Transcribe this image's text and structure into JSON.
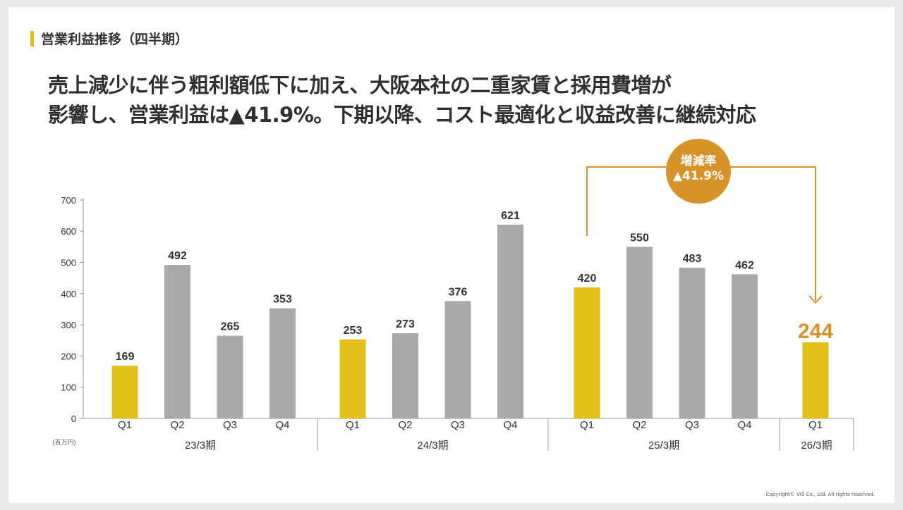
{
  "section_title": "営業利益推移（四半期）",
  "headline": {
    "line1": "売上減少に伴う粗利額低下に加え、大阪本社の二重家賃と採用費増が",
    "line2": "影響し、営業利益は▲41.9%。下期以降、コスト最適化と収益改善に継続対応"
  },
  "change_badge": {
    "label": "増減率",
    "value": "▲41.9%"
  },
  "copyright": "Copyright© VIS Co., Ltd. All rights reserved.",
  "colors": {
    "highlight": "#e3bf1a",
    "bar": "#a9a9a9",
    "accent": "#d8922a"
  },
  "chart_data": {
    "type": "bar",
    "unit_label": "(百万円)",
    "ylim": [
      0,
      700
    ],
    "yticks": [
      0,
      100,
      200,
      300,
      400,
      500,
      600,
      700
    ],
    "groups": [
      {
        "name": "23/3期",
        "quarters": [
          "Q1",
          "Q2",
          "Q3",
          "Q4"
        ],
        "values": [
          169,
          492,
          265,
          353
        ],
        "highlight": [
          true,
          false,
          false,
          false
        ]
      },
      {
        "name": "24/3期",
        "quarters": [
          "Q1",
          "Q2",
          "Q3",
          "Q4"
        ],
        "values": [
          253,
          273,
          376,
          621
        ],
        "highlight": [
          true,
          false,
          false,
          false
        ]
      },
      {
        "name": "25/3期",
        "quarters": [
          "Q1",
          "Q2",
          "Q3",
          "Q4"
        ],
        "values": [
          420,
          550,
          483,
          462
        ],
        "highlight": [
          true,
          false,
          false,
          false
        ]
      },
      {
        "name": "26/3期",
        "quarters": [
          "Q1"
        ],
        "values": [
          244
        ],
        "highlight": [
          true
        ]
      }
    ]
  }
}
